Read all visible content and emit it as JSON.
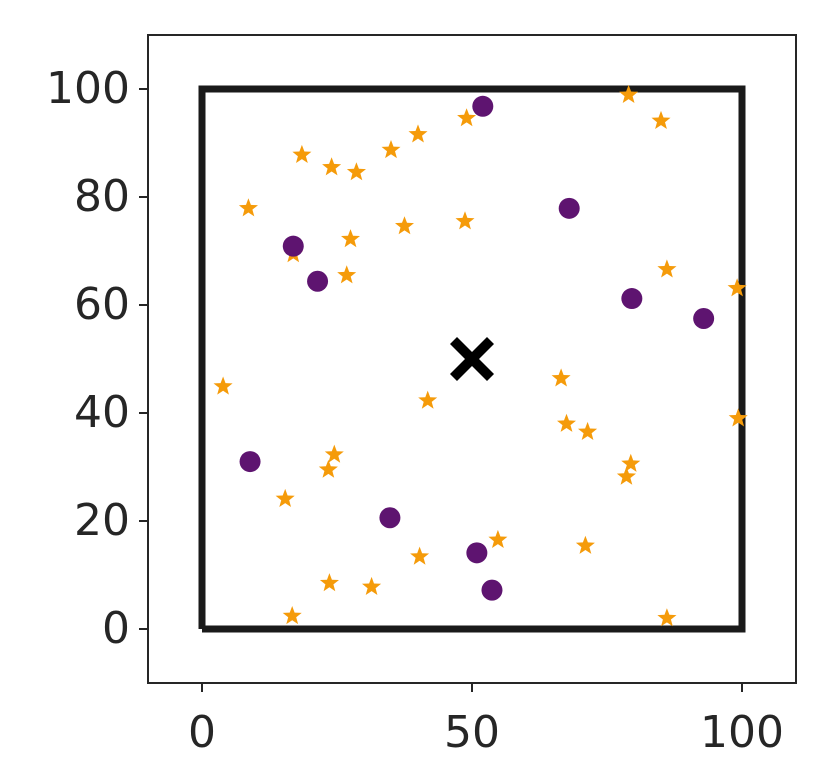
{
  "chart_data": {
    "type": "scatter",
    "xlim": [
      -10,
      110
    ],
    "ylim": [
      -10,
      110
    ],
    "xticks": [
      0,
      50,
      100
    ],
    "yticks": [
      0,
      20,
      40,
      60,
      80,
      100
    ],
    "grid": false,
    "series": [
      {
        "marker": "line",
        "color": "#1a1a1a",
        "x": [
          0,
          100,
          100,
          0,
          0
        ],
        "y": [
          0,
          0,
          100,
          100,
          0
        ]
      },
      {
        "marker": "star",
        "color": "#f59b0a",
        "x": [
          79,
          85,
          49,
          40,
          35,
          18.5,
          24,
          28.6,
          8.6,
          37.5,
          48.7,
          27.5,
          16.9,
          26.8,
          86.1,
          99.1,
          3.9,
          41.8,
          66.5,
          67.5,
          71.4,
          99.3,
          24.5,
          23.4,
          79.4,
          78.6,
          15.4,
          54.8,
          71,
          40.3,
          23.6,
          31.4,
          16.7,
          86.1
        ],
        "y": [
          98.9,
          94.1,
          94.6,
          91.6,
          88.7,
          87.8,
          85.5,
          84.6,
          77.9,
          74.6,
          75.5,
          72.2,
          69.4,
          65.5,
          66.6,
          63.1,
          44.9,
          42.3,
          46.4,
          38,
          36.5,
          39,
          32.3,
          29.5,
          30.6,
          28.2,
          24.1,
          16.5,
          15.4,
          13.4,
          8.5,
          7.8,
          2.4,
          2
        ]
      },
      {
        "marker": "circle",
        "color": "#5e1470",
        "x": [
          52,
          68,
          16.9,
          21.4,
          79.6,
          92.9,
          8.9,
          34.8,
          50.9,
          53.7
        ],
        "y": [
          96.8,
          77.9,
          70.9,
          64.4,
          61.2,
          57.5,
          31,
          20.6,
          14.1,
          7.2
        ]
      },
      {
        "marker": "x",
        "color": "#000000",
        "x": [
          50
        ],
        "y": [
          50
        ]
      }
    ]
  }
}
